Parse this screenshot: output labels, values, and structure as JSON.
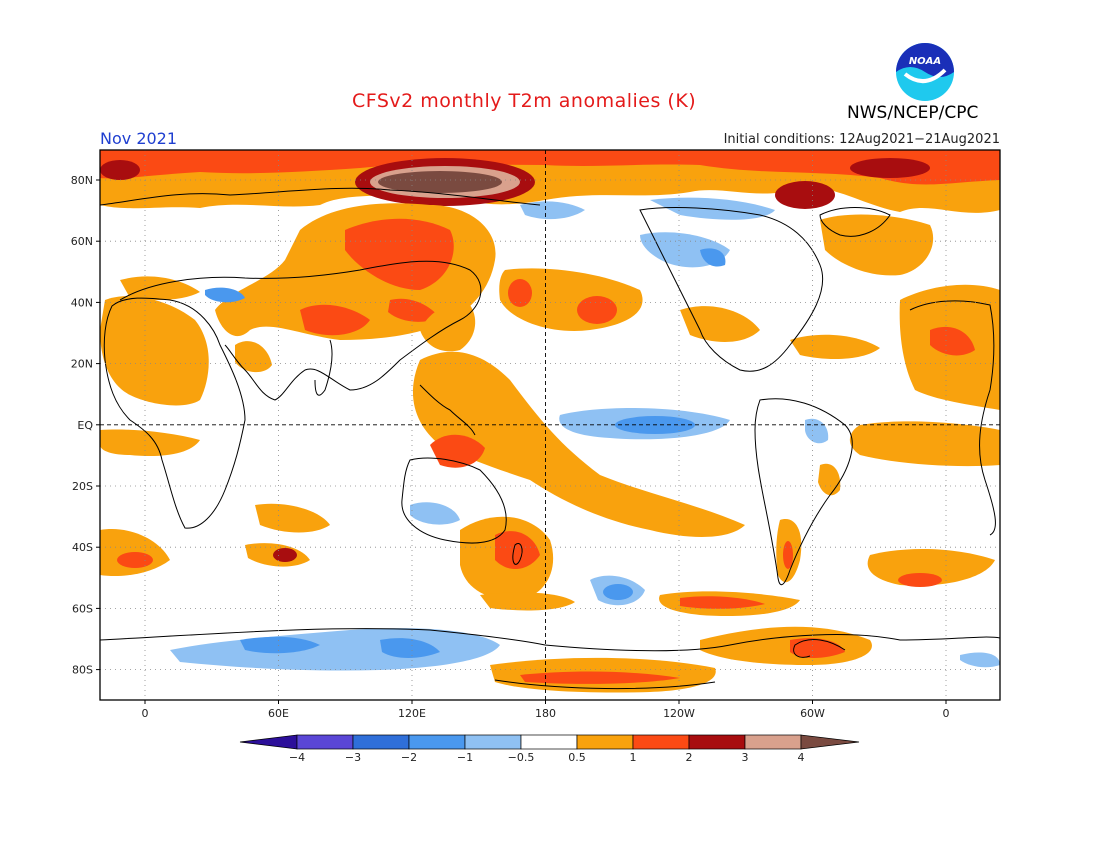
{
  "header": {
    "title": "CFSv2 monthly T2m anomalies (K)",
    "month": "Nov 2021",
    "initial_conditions": "Initial conditions: 12Aug2021−21Aug2021",
    "agency": "NWS/NCEP/CPC",
    "logo_text": "NOAA"
  },
  "map": {
    "lat_labels": [
      "80N",
      "60N",
      "40N",
      "20N",
      "EQ",
      "20S",
      "40S",
      "60S",
      "80S"
    ],
    "lon_labels": [
      "0",
      "60E",
      "120E",
      "180",
      "120W",
      "60W",
      "0"
    ],
    "colors": {
      "land_outline": "#000000",
      "grid": "#888888"
    }
  },
  "colorbar": {
    "tick_labels": [
      "−4",
      "−3",
      "−2",
      "−1",
      "−0.5",
      "0.5",
      "1",
      "2",
      "3",
      "4"
    ],
    "colors": [
      "#2c0f9a",
      "#5a46d6",
      "#2f6fd9",
      "#4a98ee",
      "#8fc1f3",
      "#ffffff",
      "#f9a20d",
      "#fb4a14",
      "#a80d0f",
      "#d9a18d",
      "#7a4a40"
    ]
  }
}
